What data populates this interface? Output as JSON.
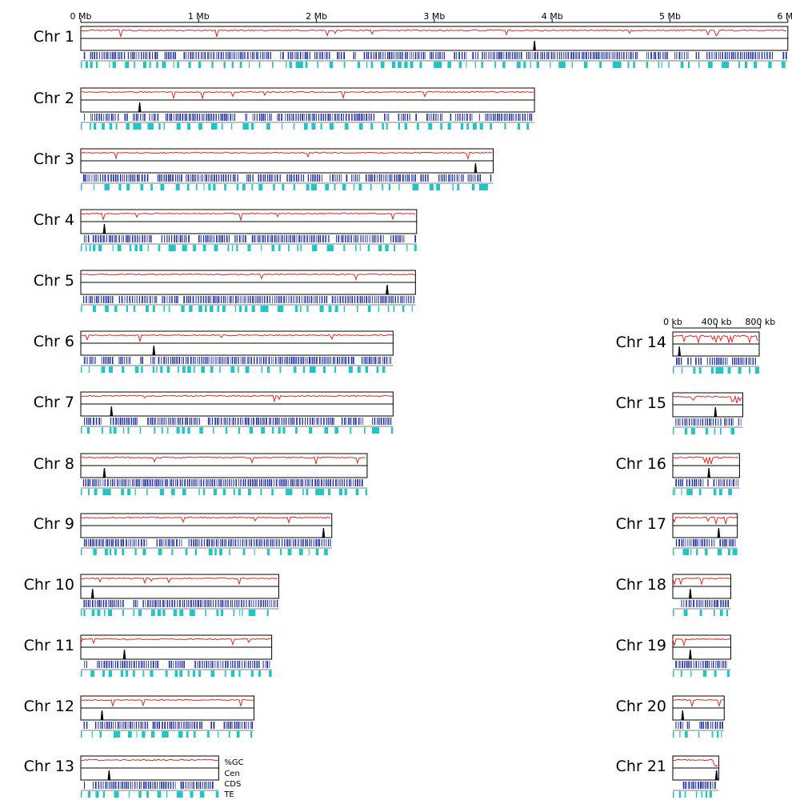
{
  "colors": {
    "gc_line": "#e8281e",
    "centromere": "#000000",
    "cds": "#1f2fa8",
    "te": "#1ec6c6",
    "frame": "#000000"
  },
  "main_scale": {
    "unit": "Mb",
    "ticks": [
      {
        "value": 0,
        "label": "0 Mb"
      },
      {
        "value": 1,
        "label": "1 Mb"
      },
      {
        "value": 2,
        "label": "2 Mb"
      },
      {
        "value": 3,
        "label": "3 Mb"
      },
      {
        "value": 4,
        "label": "4 Mb"
      },
      {
        "value": 5,
        "label": "5 Mb"
      },
      {
        "value": 6,
        "label": "6 Mb"
      }
    ]
  },
  "mini_scale": {
    "unit": "kb",
    "ticks": [
      {
        "value": 0,
        "label": "0 kb"
      },
      {
        "value": 400,
        "label": "400 kb"
      },
      {
        "value": 800,
        "label": "800 kb"
      }
    ]
  },
  "legend": {
    "items": [
      "%GC",
      "Cen",
      "CDS",
      "TE"
    ]
  },
  "chart_data": {
    "type": "genome-browser",
    "tracks": [
      "%GC",
      "Cen",
      "CDS",
      "TE"
    ],
    "large_chromosomes": [
      {
        "name": "Chr 1",
        "length_mb": 6.0,
        "centromere_mb": 3.85
      },
      {
        "name": "Chr 2",
        "length_mb": 3.85,
        "centromere_mb": 0.5
      },
      {
        "name": "Chr 3",
        "length_mb": 3.5,
        "centromere_mb": 3.35
      },
      {
        "name": "Chr 4",
        "length_mb": 2.85,
        "centromere_mb": 0.2
      },
      {
        "name": "Chr 5",
        "length_mb": 2.84,
        "centromere_mb": 2.6
      },
      {
        "name": "Chr 6",
        "length_mb": 2.65,
        "centromere_mb": 0.62
      },
      {
        "name": "Chr 7",
        "length_mb": 2.65,
        "centromere_mb": 0.26
      },
      {
        "name": "Chr 8",
        "length_mb": 2.43,
        "centromere_mb": 0.2
      },
      {
        "name": "Chr 9",
        "length_mb": 2.13,
        "centromere_mb": 2.06
      },
      {
        "name": "Chr 10",
        "length_mb": 1.68,
        "centromere_mb": 0.1
      },
      {
        "name": "Chr 11",
        "length_mb": 1.62,
        "centromere_mb": 0.37
      },
      {
        "name": "Chr 12",
        "length_mb": 1.47,
        "centromere_mb": 0.18
      },
      {
        "name": "Chr 13",
        "length_mb": 1.17,
        "centromere_mb": 0.24
      }
    ],
    "small_chromosomes": [
      {
        "name": "Chr 14",
        "length_kb": 790,
        "centromere_kb": 60
      },
      {
        "name": "Chr 15",
        "length_kb": 640,
        "centromere_kb": 390
      },
      {
        "name": "Chr 16",
        "length_kb": 610,
        "centromere_kb": 330
      },
      {
        "name": "Chr 17",
        "length_kb": 590,
        "centromere_kb": 420
      },
      {
        "name": "Chr 18",
        "length_kb": 530,
        "centromere_kb": 160
      },
      {
        "name": "Chr 19",
        "length_kb": 530,
        "centromere_kb": 160
      },
      {
        "name": "Chr 20",
        "length_kb": 470,
        "centromere_kb": 90
      },
      {
        "name": "Chr 21",
        "length_kb": 420,
        "centromere_kb": 400
      }
    ]
  }
}
